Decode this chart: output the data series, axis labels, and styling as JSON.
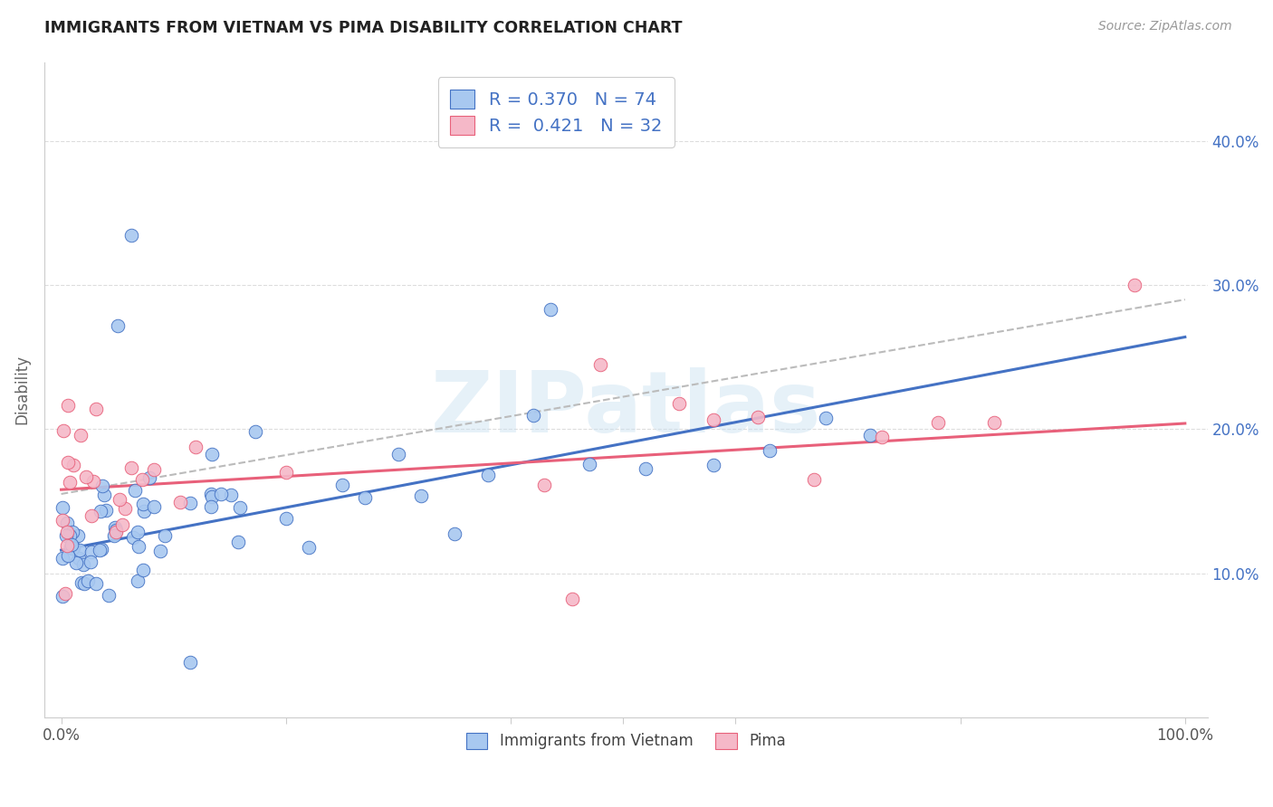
{
  "title": "IMMIGRANTS FROM VIETNAM VS PIMA DISABILITY CORRELATION CHART",
  "source": "Source: ZipAtlas.com",
  "ylabel": "Disability",
  "blue_color": "#A8C8F0",
  "pink_color": "#F5B8C8",
  "blue_line_color": "#4472C4",
  "pink_line_color": "#E8607A",
  "dash_color": "#BBBBBB",
  "legend_label1": "R = 0.370   N = 74",
  "legend_label2": "R =  0.421   N = 32",
  "series1_name": "Immigrants from Vietnam",
  "series2_name": "Pima",
  "watermark": "ZIPatlas",
  "background_color": "#FFFFFF",
  "grid_color": "#DDDDDD",
  "title_color": "#222222",
  "source_color": "#999999",
  "axis_label_color": "#666666",
  "right_tick_color": "#4472C4",
  "bottom_tick_color": "#555555"
}
